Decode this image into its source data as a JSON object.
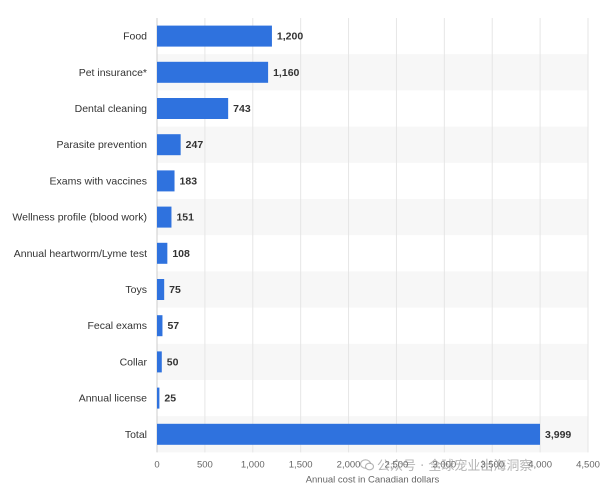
{
  "chart_data": {
    "type": "bar",
    "orientation": "horizontal",
    "categories": [
      "Food",
      "Pet insurance*",
      "Dental cleaning",
      "Parasite prevention",
      "Exams with vaccines",
      "Wellness profile (blood work)",
      "Annual heartworm/Lyme test",
      "Toys",
      "Fecal exams",
      "Collar",
      "Annual license",
      "Total"
    ],
    "values": [
      1200,
      1160,
      743,
      247,
      183,
      151,
      108,
      75,
      57,
      50,
      25,
      3999
    ],
    "value_labels": [
      "1,200",
      "1,160",
      "743",
      "247",
      "183",
      "151",
      "108",
      "75",
      "57",
      "50",
      "25",
      "3,999"
    ],
    "xlabel": "Annual cost in Canadian dollars",
    "xlim": [
      0,
      4500
    ],
    "x_ticks": [
      0,
      500,
      1000,
      1500,
      2000,
      2500,
      3000,
      3500,
      4000,
      4500
    ],
    "x_tick_labels": [
      "0",
      "500",
      "1,000",
      "1,500",
      "2,000",
      "2,500",
      "3,000",
      "3,500",
      "4,000",
      "4,500"
    ],
    "grid": "vertical",
    "alternating_row_bands": true,
    "bar_color": "#2f72de",
    "band_color": "#f7f7f7",
    "grid_color": "#e6e6e6"
  },
  "watermark": {
    "text": "公众号 · 全球宠业出海洞察",
    "icon": "wechat-icon"
  }
}
